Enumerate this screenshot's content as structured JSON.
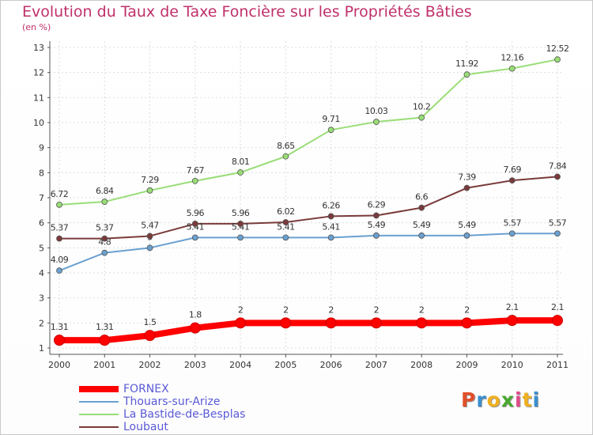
{
  "header": {
    "title": "Evolution du Taux de Taxe Foncière sur les Propriétés Bâties",
    "subtitle": "(en %)"
  },
  "logo": {
    "letters": [
      "P",
      "r",
      "o",
      "x",
      "i",
      "t",
      "i"
    ],
    "colors": [
      "#e0502a",
      "#3a8fd0",
      "#f0b020",
      "#4aa830",
      "#e04a8a",
      "#f0b020",
      "#3a8fd0"
    ]
  },
  "chart_data": {
    "type": "line",
    "title": "Evolution du Taux de Taxe Foncière sur les Propriétés Bâties",
    "xlabel": "",
    "ylabel": "(en %)",
    "x": [
      "2000",
      "2001",
      "2002",
      "2003",
      "2004",
      "2005",
      "2006",
      "2007",
      "2008",
      "2009",
      "2010",
      "2011"
    ],
    "ylim": [
      1,
      13
    ],
    "yticks": [
      1,
      2,
      3,
      4,
      5,
      6,
      7,
      8,
      9,
      10,
      11,
      12,
      13
    ],
    "grid": true,
    "legend_position": "bottom-left",
    "series": [
      {
        "name": "FORNEX",
        "color": "#ff0000",
        "emphasis": true,
        "values": [
          1.31,
          1.31,
          1.5,
          1.8,
          2,
          2,
          2,
          2,
          2,
          2,
          2.1,
          2.1
        ],
        "labels": [
          "1.31",
          "1.31",
          "1.5",
          "1.8",
          "2",
          "2",
          "2",
          "2",
          "2",
          "2",
          "2.1",
          "2.1"
        ]
      },
      {
        "name": "Thouars-sur-Arize",
        "color": "#6aa0d0",
        "values": [
          4.09,
          4.8,
          5,
          5.41,
          5.41,
          5.41,
          5.41,
          5.49,
          5.49,
          5.49,
          5.57,
          5.57
        ],
        "labels": [
          "4.09",
          "4.8",
          "5",
          "5.41",
          "5.41",
          "5.41",
          "5.41",
          "5.49",
          "5.49",
          "5.49",
          "5.57",
          "5.57"
        ]
      },
      {
        "name": "La Bastide-de-Besplas",
        "color": "#99dd77",
        "values": [
          6.72,
          6.84,
          7.29,
          7.67,
          8.01,
          8.65,
          9.71,
          10.03,
          10.2,
          11.92,
          12.16,
          12.52
        ],
        "labels": [
          "6.72",
          "6.84",
          "7.29",
          "7.67",
          "8.01",
          "8.65",
          "9.71",
          "10.03",
          "10.2",
          "11.92",
          "12.16",
          "12.52"
        ]
      },
      {
        "name": "Loubaut",
        "color": "#7a3a3a",
        "values": [
          5.37,
          5.37,
          5.47,
          5.96,
          5.96,
          6.02,
          6.26,
          6.29,
          6.6,
          7.39,
          7.69,
          7.84
        ],
        "labels": [
          "5.37",
          "5.37",
          "5.47",
          "5.96",
          "5.96",
          "6.02",
          "6.26",
          "6.29",
          "6.6",
          "7.39",
          "7.69",
          "7.84"
        ]
      }
    ]
  }
}
